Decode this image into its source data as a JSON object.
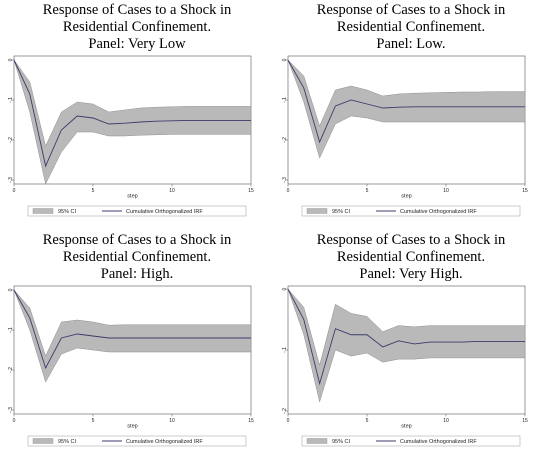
{
  "chart_data": [
    {
      "type": "area",
      "title_lines": [
        "Response of Cases to a Shock in",
        "Residential Confinement.",
        "Panel: Very Low"
      ],
      "xlabel": "step",
      "x": [
        0,
        1,
        2,
        3,
        4,
        5,
        6,
        7,
        8,
        9,
        10,
        11,
        12,
        13,
        14,
        15
      ],
      "xticks": [
        0,
        5,
        10,
        15
      ],
      "yticks": [
        0,
        -0.1,
        -0.2,
        -0.3
      ],
      "ytick_labels": [
        "0",
        "-.1",
        "-.2",
        "-.3"
      ],
      "ylim": [
        -0.31,
        0.01
      ],
      "xlim": [
        0,
        15
      ],
      "series": [
        {
          "name": "Cumulative Orthogonalized IRF",
          "values": [
            0,
            -0.085,
            -0.265,
            -0.175,
            -0.14,
            -0.145,
            -0.16,
            -0.158,
            -0.155,
            -0.153,
            -0.152,
            -0.151,
            -0.151,
            -0.151,
            -0.151,
            -0.151
          ]
        },
        {
          "name": "95% CI lower",
          "values": [
            0,
            -0.13,
            -0.31,
            -0.23,
            -0.18,
            -0.18,
            -0.19,
            -0.19,
            -0.188,
            -0.187,
            -0.186,
            -0.186,
            -0.186,
            -0.186,
            -0.186,
            -0.186
          ]
        },
        {
          "name": "95% CI upper",
          "values": [
            0,
            -0.055,
            -0.215,
            -0.13,
            -0.105,
            -0.11,
            -0.13,
            -0.125,
            -0.12,
            -0.118,
            -0.117,
            -0.116,
            -0.116,
            -0.116,
            -0.116,
            -0.116
          ]
        }
      ],
      "legend": [
        "95% CI",
        "Cumulative Orthogonalized IRF"
      ],
      "legend_position": "bottom"
    },
    {
      "type": "area",
      "title_lines": [
        "Response of Cases to a Shock in",
        "Residential Confinement.",
        "Panel: Low."
      ],
      "xlabel": "step",
      "x": [
        0,
        1,
        2,
        3,
        4,
        5,
        6,
        7,
        8,
        9,
        10,
        11,
        12,
        13,
        14,
        15
      ],
      "xticks": [
        0,
        5,
        10,
        15
      ],
      "yticks": [
        0,
        -0.1,
        -0.2,
        -0.3
      ],
      "ytick_labels": [
        "0",
        "-.1",
        "-.2",
        "-.3"
      ],
      "ylim": [
        -0.31,
        0.01
      ],
      "xlim": [
        0,
        15
      ],
      "series": [
        {
          "name": "Cumulative Orthogonalized IRF",
          "values": [
            0,
            -0.07,
            -0.205,
            -0.115,
            -0.1,
            -0.11,
            -0.12,
            -0.118,
            -0.117,
            -0.117,
            -0.117,
            -0.117,
            -0.117,
            -0.117,
            -0.117,
            -0.117
          ]
        },
        {
          "name": "95% CI lower",
          "values": [
            0,
            -0.105,
            -0.245,
            -0.16,
            -0.14,
            -0.145,
            -0.155,
            -0.155,
            -0.155,
            -0.155,
            -0.155,
            -0.155,
            -0.155,
            -0.155,
            -0.155,
            -0.155
          ]
        },
        {
          "name": "95% CI upper",
          "values": [
            0,
            -0.04,
            -0.165,
            -0.075,
            -0.065,
            -0.075,
            -0.09,
            -0.085,
            -0.083,
            -0.082,
            -0.081,
            -0.08,
            -0.08,
            -0.079,
            -0.079,
            -0.079
          ]
        }
      ],
      "legend": [
        "95% CI",
        "Cumulative Orthogonalized IRF"
      ],
      "legend_position": "bottom"
    },
    {
      "type": "area",
      "title_lines": [
        "Response of Cases to a Shock in",
        "Residential Confinement.",
        "Panel: High."
      ],
      "xlabel": "step",
      "x": [
        0,
        1,
        2,
        3,
        4,
        5,
        6,
        7,
        8,
        9,
        10,
        11,
        12,
        13,
        14,
        15
      ],
      "xticks": [
        0,
        5,
        10,
        15
      ],
      "yticks": [
        0,
        -0.1,
        -0.2,
        -0.3
      ],
      "ytick_labels": [
        "0",
        "-.1",
        "-.2",
        "-.3"
      ],
      "ylim": [
        -0.31,
        0.01
      ],
      "xlim": [
        0,
        15
      ],
      "series": [
        {
          "name": "Cumulative Orthogonalized IRF",
          "values": [
            0,
            -0.07,
            -0.195,
            -0.12,
            -0.11,
            -0.115,
            -0.12,
            -0.12,
            -0.12,
            -0.12,
            -0.12,
            -0.12,
            -0.12,
            -0.12,
            -0.12,
            -0.12
          ]
        },
        {
          "name": "95% CI lower",
          "values": [
            0,
            -0.1,
            -0.23,
            -0.16,
            -0.145,
            -0.15,
            -0.155,
            -0.155,
            -0.155,
            -0.155,
            -0.155,
            -0.155,
            -0.155,
            -0.155,
            -0.155,
            -0.155
          ]
        },
        {
          "name": "95% CI upper",
          "values": [
            0,
            -0.045,
            -0.165,
            -0.08,
            -0.075,
            -0.08,
            -0.088,
            -0.087,
            -0.087,
            -0.087,
            -0.087,
            -0.087,
            -0.087,
            -0.087,
            -0.087,
            -0.087
          ]
        }
      ],
      "legend": [
        "95% CI",
        "Cumulative Orthogonalized IRF"
      ],
      "legend_position": "bottom"
    },
    {
      "type": "area",
      "title_lines": [
        "Response of Cases to a Shock in",
        "Residential Confinement.",
        "Panel: Very High."
      ],
      "xlabel": "step",
      "x": [
        0,
        1,
        2,
        3,
        4,
        5,
        6,
        7,
        8,
        9,
        10,
        11,
        12,
        13,
        14,
        15
      ],
      "xticks": [
        0,
        5,
        10,
        15
      ],
      "yticks": [
        0,
        -0.1,
        -0.2
      ],
      "ytick_labels": [
        "0",
        "-.1",
        "-.2"
      ],
      "ylim": [
        -0.205,
        0.005
      ],
      "xlim": [
        0,
        15
      ],
      "series": [
        {
          "name": "Cumulative Orthogonalized IRF",
          "values": [
            0,
            -0.05,
            -0.155,
            -0.065,
            -0.075,
            -0.075,
            -0.095,
            -0.085,
            -0.09,
            -0.087,
            -0.087,
            -0.087,
            -0.086,
            -0.086,
            -0.086,
            -0.086
          ]
        },
        {
          "name": "95% CI lower",
          "values": [
            0,
            -0.075,
            -0.185,
            -0.1,
            -0.11,
            -0.105,
            -0.12,
            -0.115,
            -0.115,
            -0.113,
            -0.113,
            -0.113,
            -0.113,
            -0.113,
            -0.113,
            -0.113
          ]
        },
        {
          "name": "95% CI upper",
          "values": [
            0,
            -0.03,
            -0.125,
            -0.025,
            -0.04,
            -0.045,
            -0.07,
            -0.06,
            -0.062,
            -0.06,
            -0.06,
            -0.06,
            -0.06,
            -0.06,
            -0.06,
            -0.06
          ]
        }
      ],
      "legend": [
        "95% CI",
        "Cumulative Orthogonalized IRF"
      ],
      "legend_position": "bottom"
    }
  ],
  "colors": {
    "ci_band": "#b9b9b9",
    "irf_line": "#3b3b6b",
    "frame": "#555555"
  }
}
